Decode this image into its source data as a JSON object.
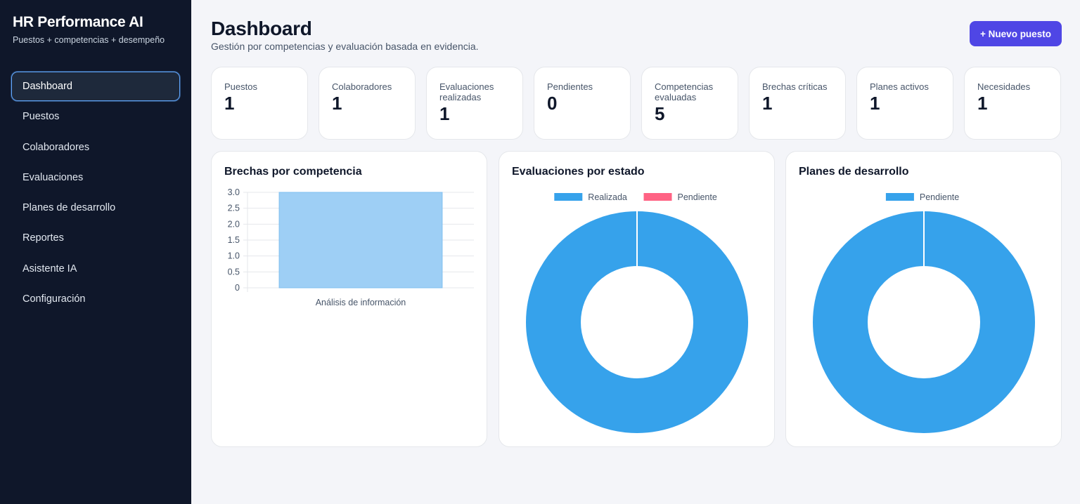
{
  "sidebar": {
    "title": "HR Performance AI",
    "subtitle": "Puestos + competencias + desempeño",
    "items": [
      {
        "label": "Dashboard",
        "active": true
      },
      {
        "label": "Puestos"
      },
      {
        "label": "Colaboradores"
      },
      {
        "label": "Evaluaciones"
      },
      {
        "label": "Planes de desarrollo"
      },
      {
        "label": "Reportes"
      },
      {
        "label": "Asistente IA"
      },
      {
        "label": "Configuración"
      }
    ]
  },
  "header": {
    "title": "Dashboard",
    "subtitle": "Gestión por competencias y evaluación basada en evidencia.",
    "new_button": "+ Nuevo puesto"
  },
  "kpis": [
    {
      "label": "Puestos",
      "value": "1"
    },
    {
      "label": "Colaboradores",
      "value": "1"
    },
    {
      "label": "Evaluaciones realizadas",
      "value": "1"
    },
    {
      "label": "Pendientes",
      "value": "0"
    },
    {
      "label": "Competencias evaluadas",
      "value": "5"
    },
    {
      "label": "Brechas críticas",
      "value": "1"
    },
    {
      "label": "Planes activos",
      "value": "1"
    },
    {
      "label": "Necesidades",
      "value": "1"
    }
  ],
  "colors": {
    "accent": "#4f46e5",
    "sidebar_bg": "#0f172a",
    "active_border": "#60a5fa",
    "blue": "#36a2eb",
    "bar_fill": "#9ecff5",
    "pink": "#ff6384"
  },
  "chart_data": [
    {
      "type": "bar",
      "title": "Brechas por competencia",
      "categories": [
        "Análisis de información"
      ],
      "values": [
        3
      ],
      "ylim": [
        0,
        3
      ],
      "yticks": [
        "3.0",
        "2.5",
        "2.0",
        "1.5",
        "1.0",
        "0.5",
        "0"
      ],
      "grid": true
    },
    {
      "type": "pie",
      "title": "Evaluaciones por estado",
      "legend": "top",
      "labels": [
        "Realizada",
        "Pendiente"
      ],
      "values": [
        1,
        0
      ],
      "colors": [
        "#36a2eb",
        "#ff6384"
      ]
    },
    {
      "type": "pie",
      "title": "Planes de desarrollo",
      "legend": "top",
      "labels": [
        "Pendiente"
      ],
      "values": [
        1
      ],
      "colors": [
        "#36a2eb"
      ]
    }
  ]
}
